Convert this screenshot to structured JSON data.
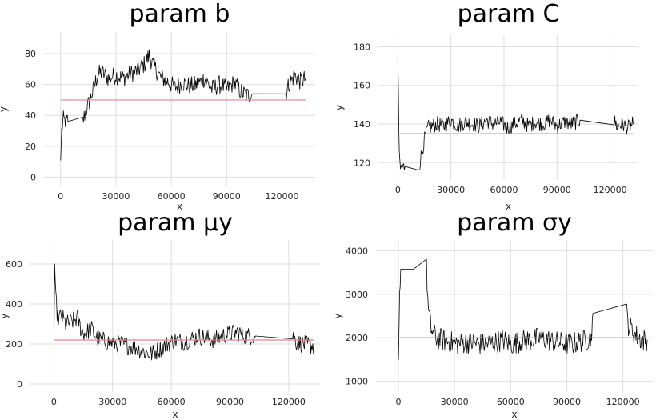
{
  "chart_data": [
    {
      "type": "line",
      "title": "param b",
      "xlabel": "x",
      "ylabel": "y",
      "xticks": [
        0,
        30000,
        60000,
        90000,
        120000
      ],
      "yticks": [
        0,
        20,
        40,
        60,
        80
      ],
      "xlim": [
        -9000,
        138000
      ],
      "ylim": [
        -6,
        94
      ],
      "reference_value": 50,
      "series": [
        {
          "color": "#000000",
          "points": [
            [
              0,
              11
            ],
            [
              600,
              30
            ],
            [
              1500,
              37
            ],
            [
              4000,
              36
            ],
            [
              12000,
              36
            ],
            [
              13500,
              42
            ],
            [
              16000,
              50
            ],
            [
              18000,
              58
            ],
            [
              20000,
              66
            ],
            [
              22000,
              68
            ],
            [
              26000,
              64
            ],
            [
              30000,
              66
            ],
            [
              34000,
              64
            ],
            [
              38000,
              67
            ],
            [
              42000,
              69
            ],
            [
              46000,
              74
            ],
            [
              48000,
              79
            ],
            [
              50000,
              73
            ],
            [
              54000,
              65
            ],
            [
              58000,
              62
            ],
            [
              62000,
              58
            ],
            [
              66000,
              61
            ],
            [
              70000,
              59
            ],
            [
              74000,
              60
            ],
            [
              78000,
              64
            ],
            [
              82000,
              57
            ],
            [
              86000,
              60
            ],
            [
              90000,
              57
            ],
            [
              94000,
              61
            ],
            [
              98000,
              55
            ],
            [
              101000,
              53
            ],
            [
              104000,
              54
            ],
            [
              122000,
              54
            ],
            [
              124000,
              61
            ],
            [
              127000,
              66
            ],
            [
              130000,
              62
            ],
            [
              133000,
              64
            ]
          ],
          "band": 6
        }
      ]
    },
    {
      "type": "line",
      "title": "param C",
      "xlabel": "x",
      "ylabel": "y",
      "xticks": [
        0,
        30000,
        60000,
        90000,
        120000
      ],
      "yticks": [
        120,
        140,
        160,
        180
      ],
      "xlim": [
        -11000,
        136000
      ],
      "ylim": [
        111,
        186
      ],
      "reference_value": 135,
      "series": [
        {
          "color": "#000000",
          "points": [
            [
              0,
              175
            ],
            [
              400,
              150
            ],
            [
              800,
              122
            ],
            [
              1500,
              117
            ],
            [
              4000,
              118
            ],
            [
              12000,
              118
            ],
            [
              13500,
              125
            ],
            [
              15000,
              132
            ],
            [
              17000,
              138
            ],
            [
              22000,
              140
            ],
            [
              26000,
              139
            ],
            [
              30000,
              142
            ],
            [
              34000,
              139
            ],
            [
              38000,
              141
            ],
            [
              42000,
              140
            ],
            [
              46000,
              139
            ],
            [
              50000,
              142
            ],
            [
              54000,
              140
            ],
            [
              58000,
              141
            ],
            [
              62000,
              138
            ],
            [
              66000,
              140
            ],
            [
              70000,
              142
            ],
            [
              74000,
              139
            ],
            [
              78000,
              141
            ],
            [
              82000,
              140
            ],
            [
              86000,
              142
            ],
            [
              90000,
              139
            ],
            [
              94000,
              141
            ],
            [
              98000,
              140
            ],
            [
              103000,
              142
            ],
            [
              122000,
              142
            ],
            [
              124000,
              139
            ],
            [
              127000,
              140
            ],
            [
              130000,
              138
            ],
            [
              133000,
              140
            ]
          ],
          "band": 4
        }
      ]
    },
    {
      "type": "line",
      "title": "param μy",
      "xlabel": "x",
      "ylabel": "y",
      "xticks": [
        0,
        30000,
        60000,
        90000,
        120000
      ],
      "yticks": [
        0,
        200,
        400,
        600
      ],
      "xlim": [
        -12000,
        136000
      ],
      "ylim": [
        -40,
        720
      ],
      "reference_value": 220,
      "series": [
        {
          "color": "#000000",
          "points": [
            [
              0,
              150
            ],
            [
              400,
              600
            ],
            [
              1000,
              420
            ],
            [
              2000,
              330
            ],
            [
              4000,
              340
            ],
            [
              6000,
              300
            ],
            [
              9000,
              310
            ],
            [
              12000,
              330
            ],
            [
              14000,
              270
            ],
            [
              16000,
              250
            ],
            [
              19000,
              280
            ],
            [
              22000,
              230
            ],
            [
              26000,
              215
            ],
            [
              30000,
              205
            ],
            [
              34000,
              200
            ],
            [
              38000,
              190
            ],
            [
              42000,
              180
            ],
            [
              46000,
              160
            ],
            [
              50000,
              150
            ],
            [
              54000,
              175
            ],
            [
              58000,
              200
            ],
            [
              62000,
              220
            ],
            [
              66000,
              210
            ],
            [
              70000,
              225
            ],
            [
              74000,
              240
            ],
            [
              78000,
              230
            ],
            [
              82000,
              220
            ],
            [
              86000,
              240
            ],
            [
              90000,
              250
            ],
            [
              94000,
              260
            ],
            [
              98000,
              240
            ],
            [
              103000,
              240
            ],
            [
              122000,
              240
            ],
            [
              124000,
              210
            ],
            [
              127000,
              200
            ],
            [
              130000,
              195
            ],
            [
              133000,
              190
            ]
          ],
          "band": 45
        }
      ]
    },
    {
      "type": "line",
      "title": "param σy",
      "xlabel": "x",
      "ylabel": "y",
      "xticks": [
        0,
        30000,
        60000,
        90000,
        120000
      ],
      "yticks": [
        1000,
        2000,
        3000,
        4000
      ],
      "xlim": [
        -12000,
        136000
      ],
      "ylim": [
        750,
        4250
      ],
      "reference_value": 2000,
      "series": [
        {
          "color": "#000000",
          "points": [
            [
              0,
              1500
            ],
            [
              600,
              3000
            ],
            [
              1200,
              3580
            ],
            [
              8000,
              3580
            ],
            [
              15000,
              3580
            ],
            [
              16000,
              2600
            ],
            [
              17500,
              2200
            ],
            [
              20000,
              2000
            ],
            [
              24000,
              1950
            ],
            [
              28000,
              1900
            ],
            [
              32000,
              1850
            ],
            [
              36000,
              1900
            ],
            [
              40000,
              1880
            ],
            [
              44000,
              1850
            ],
            [
              48000,
              1870
            ],
            [
              52000,
              1900
            ],
            [
              56000,
              1950
            ],
            [
              60000,
              1850
            ],
            [
              64000,
              1900
            ],
            [
              68000,
              1950
            ],
            [
              72000,
              1950
            ],
            [
              76000,
              2000
            ],
            [
              80000,
              1950
            ],
            [
              84000,
              1900
            ],
            [
              88000,
              1880
            ],
            [
              92000,
              1850
            ],
            [
              96000,
              1900
            ],
            [
              100000,
              1950
            ],
            [
              103000,
              2000
            ],
            [
              104000,
              2560
            ],
            [
              122000,
              2560
            ],
            [
              123000,
              2300
            ],
            [
              127000,
              2050
            ],
            [
              130000,
              1950
            ],
            [
              133000,
              1950
            ]
          ],
          "band": 260
        }
      ]
    }
  ],
  "colors": {
    "trace": "#000000",
    "reference": "#e8838d",
    "grid": "#dedede"
  }
}
